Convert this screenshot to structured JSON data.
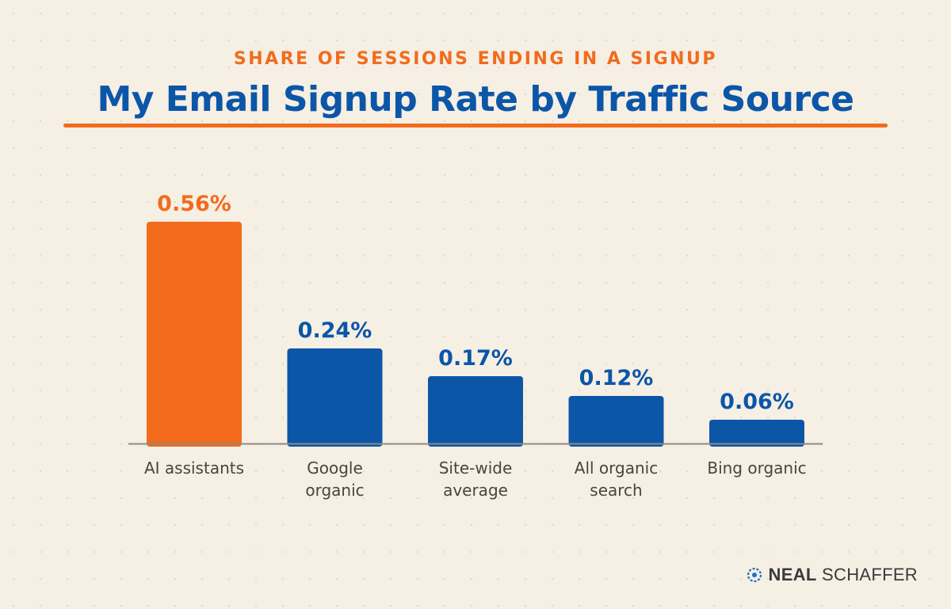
{
  "chart_data": {
    "type": "bar",
    "subtitle": "SHARE OF SESSIONS ENDING IN A SIGNUP",
    "title": "My Email Signup Rate by Traffic Source",
    "categories": [
      "AI assistants",
      "Google organic",
      "Site-wide average",
      "All organic search",
      "Bing organic"
    ],
    "category_lines": [
      [
        "AI assistants"
      ],
      [
        "Google",
        "organic"
      ],
      [
        "Site-wide",
        "average"
      ],
      [
        "All organic",
        "search"
      ],
      [
        "Bing organic"
      ]
    ],
    "values": [
      0.56,
      0.24,
      0.17,
      0.12,
      0.06
    ],
    "value_labels": [
      "0.56%",
      "0.24%",
      "0.17%",
      "0.12%",
      "0.06%"
    ],
    "unit": "%",
    "ylim": [
      0,
      0.6
    ],
    "grid": false,
    "highlight_index": 0,
    "colors": {
      "highlight": "#f26b1d",
      "bar": "#0c56a8",
      "axis": "#8f8a80",
      "category_text": "#4a4440"
    }
  },
  "brand": {
    "icon": "neal-schaffer-logo-icon",
    "name_bold": "NEAL",
    "name_regular": "SCHAFFER"
  }
}
